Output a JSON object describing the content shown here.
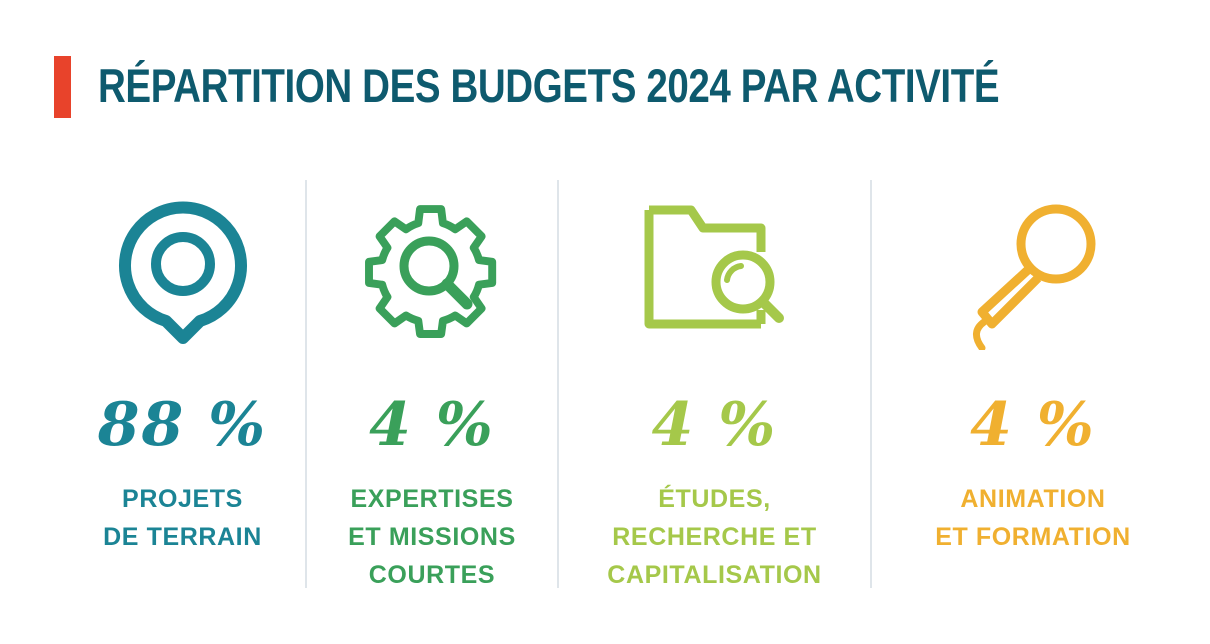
{
  "title": "RÉPARTITION DES BUDGETS 2024 PAR ACTIVITÉ",
  "colors": {
    "accent": "#e8432b",
    "title": "#0e5a6e",
    "terrain": "#1b8495",
    "expertises": "#3aa05a",
    "etudes": "#a5c84a",
    "animation": "#f0b030",
    "divider": "#dfe5ea"
  },
  "chart_data": {
    "type": "table",
    "title": "RÉPARTITION DES BUDGETS 2024 PAR ACTIVITÉ",
    "categories": [
      "PROJETS DE TERRAIN",
      "EXPERTISES ET MISSIONS COURTES",
      "ÉTUDES, RECHERCHE ET CAPITALISATION",
      "ANIMATION ET FORMATION"
    ],
    "values": [
      88,
      4,
      4,
      4
    ],
    "unit": "%",
    "items": [
      {
        "icon": "location-pin-icon",
        "value_label": "88 %",
        "label_lines": [
          "PROJETS",
          "DE TERRAIN"
        ],
        "color": "#1b8495"
      },
      {
        "icon": "gear-search-icon",
        "value_label": "4 %",
        "label_lines": [
          "EXPERTISES",
          "ET MISSIONS",
          "COURTES"
        ],
        "color": "#3aa05a"
      },
      {
        "icon": "folder-search-icon",
        "value_label": "4 %",
        "label_lines": [
          "ÉTUDES,",
          "RECHERCHE ET",
          "CAPITALISATION"
        ],
        "color": "#a5c84a"
      },
      {
        "icon": "microphone-icon",
        "value_label": "4 %",
        "label_lines": [
          "ANIMATION",
          "ET FORMATION"
        ],
        "color": "#f0b030"
      }
    ]
  }
}
